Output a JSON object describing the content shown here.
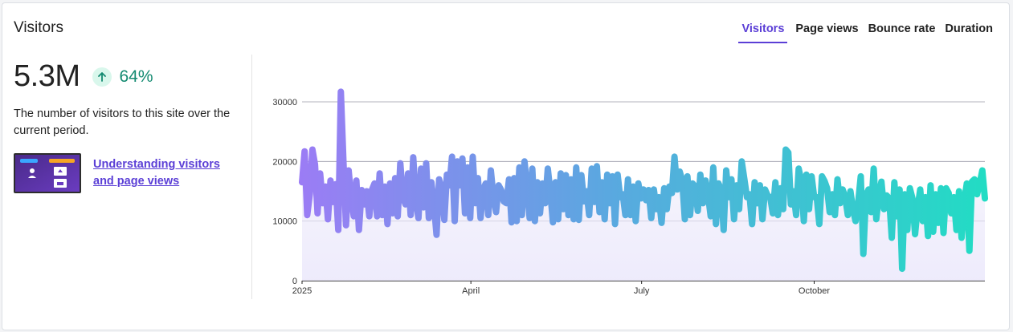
{
  "title": "Visitors",
  "tabs": [
    {
      "label": "Visitors",
      "active": true
    },
    {
      "label": "Page views",
      "active": false
    },
    {
      "label": "Bounce rate",
      "active": false
    },
    {
      "label": "Duration",
      "active": false
    }
  ],
  "stat": {
    "value": "5.3M",
    "trend_icon": "arrow-up-icon",
    "change": "64%"
  },
  "description": "The number of visitors to this site over the current period.",
  "learn_link": "Understanding visitors and page views",
  "colors": {
    "accent": "#5b3fd6",
    "positive": "#138a71",
    "line_start": "#9b7cf5",
    "line_mid": "#5aa8e0",
    "line_end": "#22dcc4"
  },
  "chart_data": {
    "type": "line",
    "x_tick_labels": [
      "2025",
      "April",
      "July",
      "October"
    ],
    "y_tick_labels": [
      "0",
      "10000",
      "20000",
      "30000"
    ],
    "ylim": [
      0,
      30000
    ],
    "grid": true,
    "x_range_days": [
      0,
      364
    ],
    "series": [
      {
        "values": [
          16500,
          21700,
          11000,
          14600,
          22000,
          19500,
          11300,
          18000,
          13000,
          15800,
          10300,
          16800,
          13200,
          16200,
          8500,
          31700,
          20000,
          9300,
          18500,
          13800,
          10800,
          16800,
          8500,
          15200,
          12800,
          15000,
          10800,
          15200,
          16300,
          10800,
          18000,
          11000,
          15800,
          9500,
          16300,
          11300,
          17200,
          10800,
          19700,
          14000,
          12800,
          18000,
          11000,
          20700,
          13300,
          10500,
          18800,
          12300,
          19700,
          10500,
          16500,
          12800,
          7700,
          17000,
          15500,
          10200,
          17800,
          16000,
          20800,
          10000,
          20000,
          16000,
          20500,
          11300,
          19000,
          10500,
          20800,
          13000,
          17200,
          10500,
          15300,
          16300,
          11000,
          18500,
          14000,
          11500,
          16000,
          15200,
          13300,
          13000,
          17000,
          9800,
          17200,
          10000,
          19000,
          11000,
          20000,
          15800,
          10500,
          18800,
          10000,
          16500,
          11300,
          16300,
          13000,
          18800,
          14800,
          9800,
          16500,
          10300,
          18000,
          12000,
          17700,
          11000,
          17000,
          10300,
          19000,
          10200,
          17700,
          13300,
          15000,
          11000,
          18800,
          13200,
          19200,
          11500,
          16500,
          10300,
          17800,
          13000,
          17500,
          9500,
          17800,
          14000,
          14500,
          11000,
          17000,
          11000,
          15800,
          10000,
          16300,
          13800,
          15300,
          13500,
          15200,
          10500,
          15300,
          12000,
          14000,
          9700,
          15500,
          12000,
          15800,
          14700,
          20800,
          15300,
          18300,
          16800,
          10300,
          17500,
          11000,
          16300,
          15800,
          11700,
          17800,
          13000,
          16800,
          14300,
          10800,
          19000,
          9500,
          16300,
          15300,
          8500,
          18500,
          14000,
          17000,
          10300,
          16000,
          12000,
          20000,
          17000,
          14000,
          14500,
          9500,
          16500,
          13000,
          16000,
          10300,
          15300,
          14300,
          14000,
          11300,
          16500,
          11000,
          15500,
          12000,
          22000,
          21500,
          12800,
          15000,
          11000,
          18800,
          16800,
          10000,
          17800,
          12000,
          17500,
          14000,
          14000,
          9500,
          17500,
          16700,
          15500,
          11500,
          14500,
          11000,
          17000,
          13000,
          15300,
          14000,
          11000,
          15000,
          12000,
          10000,
          13000,
          17500,
          4500,
          14300,
          15300,
          11500,
          18800,
          10300,
          14300,
          16600,
          12000,
          14300,
          13800,
          7200,
          16500,
          10800,
          15300,
          2000,
          14500,
          8500,
          15500,
          13800,
          7800,
          12300,
          15300,
          10000,
          14000,
          7500,
          16000,
          8200,
          14500,
          9700,
          15500,
          8000,
          15500,
          14700,
          11300,
          14000,
          8500,
          15000,
          7200,
          13300,
          16300,
          5000,
          16600,
          17000,
          14500,
          16300,
          18500,
          13800
        ]
      }
    ]
  }
}
